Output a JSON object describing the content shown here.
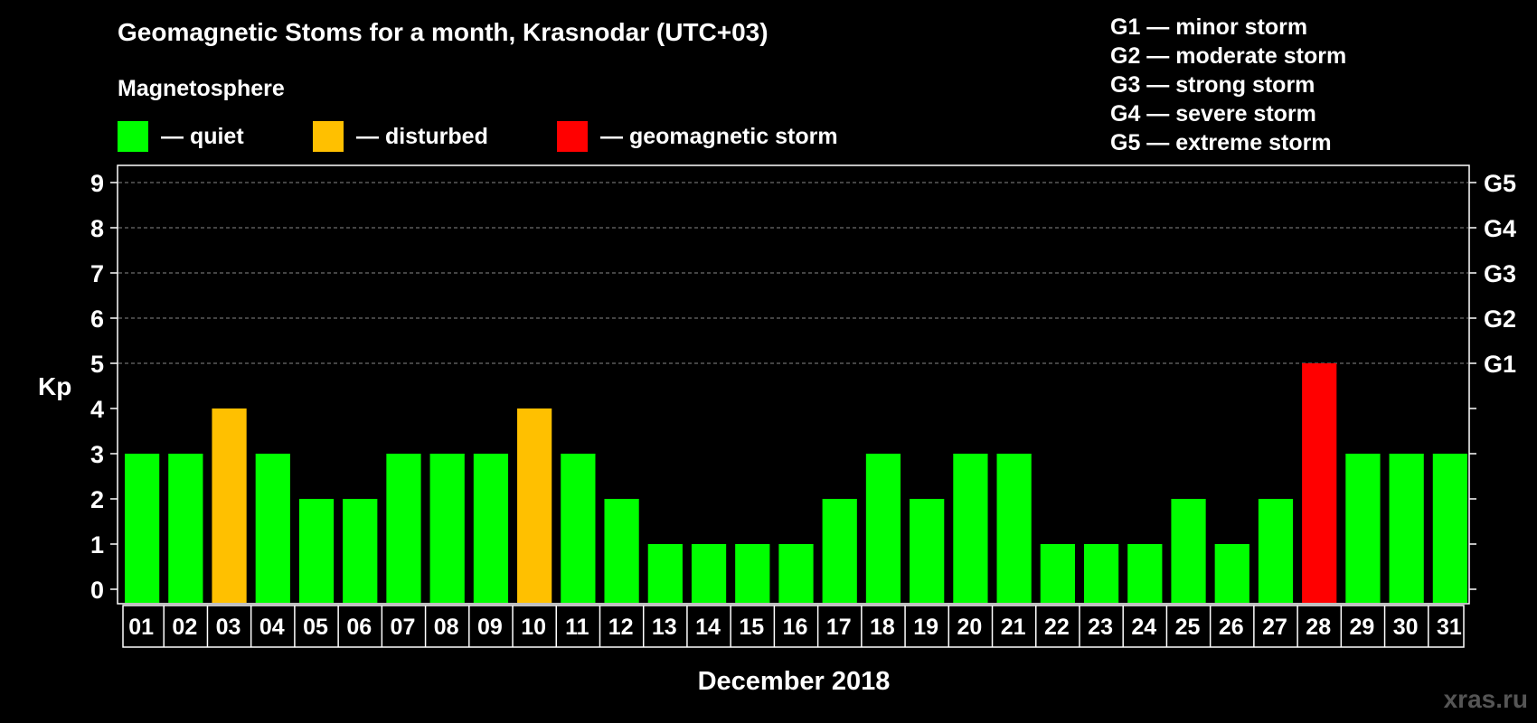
{
  "header": {
    "title": "Geomagnetic Stoms for a month, Krasnodar (UTC+03)",
    "legend_heading": "Magnetosphere"
  },
  "legend": [
    {
      "label": "— quiet",
      "color": "#00ff00"
    },
    {
      "label": "— disturbed",
      "color": "#ffc000"
    },
    {
      "label": "— geomagnetic storm",
      "color": "#ff0000"
    }
  ],
  "storm_levels": [
    "G1 — minor storm",
    "G2 — moderate storm",
    "G3 — strong storm",
    "G4 — severe storm",
    "G5 — extreme storm"
  ],
  "chart_data": {
    "type": "bar",
    "xlabel": "December 2018",
    "ylabel": "Kp",
    "ylim": [
      0,
      9
    ],
    "yticks": [
      0,
      1,
      2,
      3,
      4,
      5,
      6,
      7,
      8,
      9
    ],
    "right_axis_labels": [
      {
        "y": 5,
        "label": "G1"
      },
      {
        "y": 6,
        "label": "G2"
      },
      {
        "y": 7,
        "label": "G3"
      },
      {
        "y": 8,
        "label": "G4"
      },
      {
        "y": 9,
        "label": "G5"
      }
    ],
    "gridlines": [
      5,
      6,
      7,
      8,
      9
    ],
    "colors": {
      "quiet": "#00ff00",
      "disturbed": "#ffc000",
      "storm": "#ff0000"
    },
    "categories": [
      "01",
      "02",
      "03",
      "04",
      "05",
      "06",
      "07",
      "08",
      "09",
      "10",
      "11",
      "12",
      "13",
      "14",
      "15",
      "16",
      "17",
      "18",
      "19",
      "20",
      "21",
      "22",
      "23",
      "24",
      "25",
      "26",
      "27",
      "28",
      "29",
      "30",
      "31"
    ],
    "values": [
      3,
      3,
      4,
      3,
      2,
      2,
      3,
      3,
      3,
      4,
      3,
      2,
      1,
      1,
      1,
      1,
      2,
      3,
      2,
      3,
      3,
      1,
      1,
      1,
      2,
      1,
      2,
      5,
      3,
      3,
      3
    ]
  },
  "watermark": "xras.ru"
}
